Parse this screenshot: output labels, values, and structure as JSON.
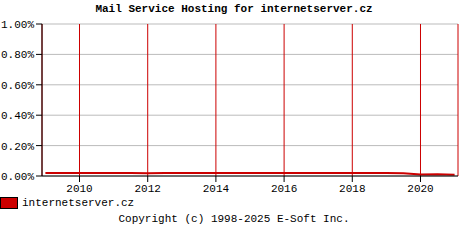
{
  "chart_data": {
    "type": "line",
    "title": "Mail Service Hosting for internetserver.cz",
    "annotations": [
      "Copyright (c) 1998-2025 E-Soft Inc."
    ],
    "x": [
      2009.0,
      2009.5,
      2010.0,
      2010.5,
      2011.0,
      2011.5,
      2012.0,
      2012.5,
      2013.0,
      2013.5,
      2014.0,
      2014.5,
      2015.0,
      2015.5,
      2016.0,
      2016.5,
      2017.0,
      2017.5,
      2018.0,
      2018.5,
      2019.0,
      2019.5,
      2020.0,
      2020.5,
      2021.0
    ],
    "series": [
      {
        "name": "internetserver.cz",
        "color": "#cc0000",
        "values": [
          0.02,
          0.02,
          0.02,
          0.02,
          0.02,
          0.02,
          0.018,
          0.02,
          0.02,
          0.02,
          0.02,
          0.02,
          0.02,
          0.02,
          0.02,
          0.02,
          0.02,
          0.02,
          0.02,
          0.02,
          0.02,
          0.018,
          0.01,
          0.012,
          0.008
        ]
      }
    ],
    "xlim": [
      2008.9,
      2021.1
    ],
    "xticks": [
      2010,
      2012,
      2014,
      2016,
      2018,
      2020
    ],
    "ylim": [
      0,
      1
    ],
    "yticks": [
      {
        "value": 0,
        "label": "0.00%"
      },
      {
        "value": 0.2,
        "label": "0.20%"
      },
      {
        "value": 0.4,
        "label": "0.40%"
      },
      {
        "value": 0.6,
        "label": "0.60%"
      },
      {
        "value": 0.8,
        "label": "0.80%"
      },
      {
        "value": 1,
        "label": "1.00%"
      }
    ],
    "grid": true,
    "legend": "bottom-left"
  }
}
